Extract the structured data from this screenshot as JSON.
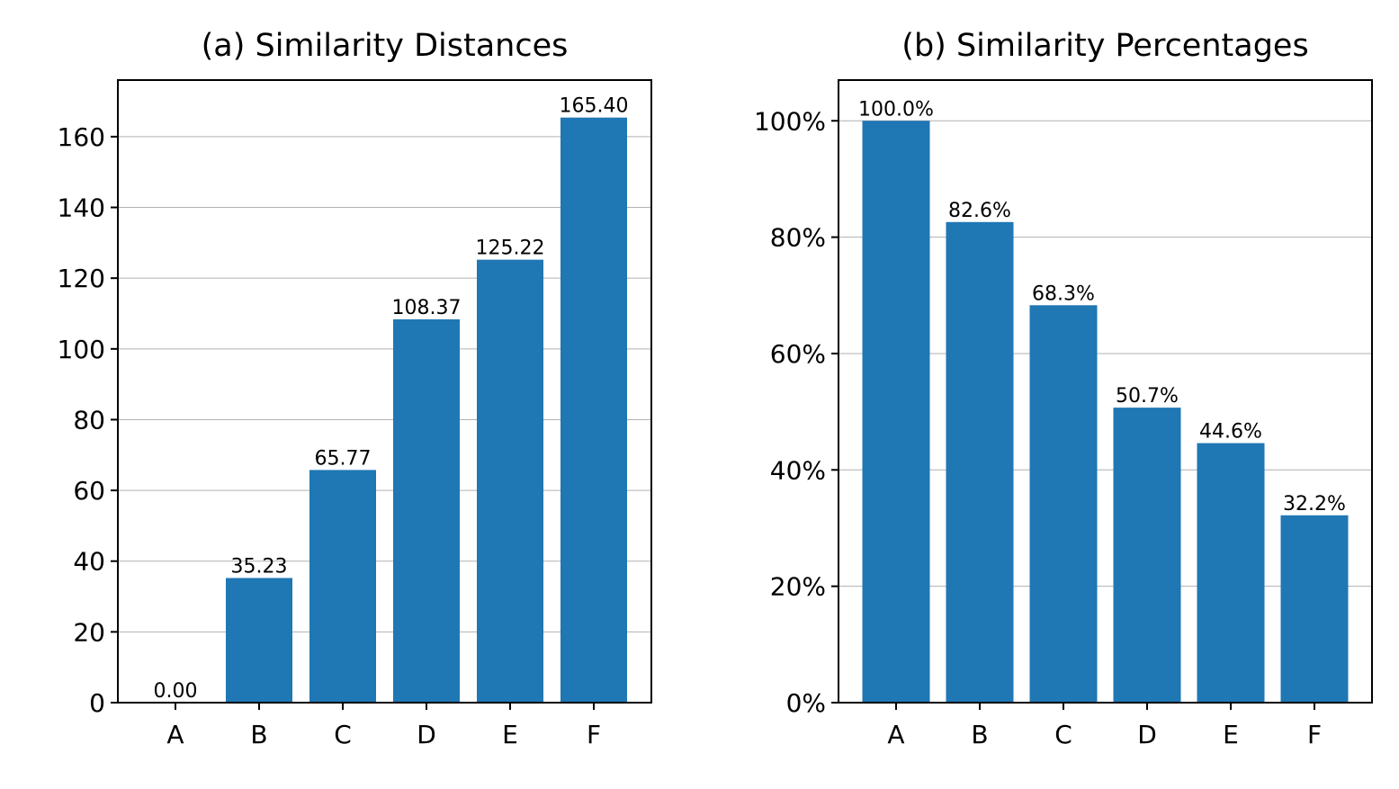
{
  "chart_data": [
    {
      "type": "bar",
      "title": "(a) Similarity Distances",
      "categories": [
        "A",
        "B",
        "C",
        "D",
        "E",
        "F"
      ],
      "values": [
        0.0,
        35.23,
        65.77,
        108.37,
        125.22,
        165.4
      ],
      "value_labels": [
        "0.00",
        "35.23",
        "65.77",
        "108.37",
        "125.22",
        "165.40"
      ],
      "ylim": [
        0,
        176
      ],
      "yticks": [
        0,
        20,
        40,
        60,
        80,
        100,
        120,
        140,
        160
      ],
      "ytick_labels": [
        "0",
        "20",
        "40",
        "60",
        "80",
        "100",
        "120",
        "140",
        "160"
      ],
      "grid": "horizontal",
      "bar_color": "#1f77b4"
    },
    {
      "type": "bar",
      "title": "(b) Similarity Percentages",
      "categories": [
        "A",
        "B",
        "C",
        "D",
        "E",
        "F"
      ],
      "values": [
        100.0,
        82.6,
        68.3,
        50.7,
        44.6,
        32.2
      ],
      "value_labels": [
        "100.0%",
        "82.6%",
        "68.3%",
        "50.7%",
        "44.6%",
        "32.2%"
      ],
      "ylim": [
        0,
        107
      ],
      "yticks": [
        0,
        20,
        40,
        60,
        80,
        100
      ],
      "ytick_labels": [
        "0%",
        "20%",
        "40%",
        "60%",
        "80%",
        "100%"
      ],
      "grid": "horizontal",
      "bar_color": "#1f77b4"
    }
  ]
}
